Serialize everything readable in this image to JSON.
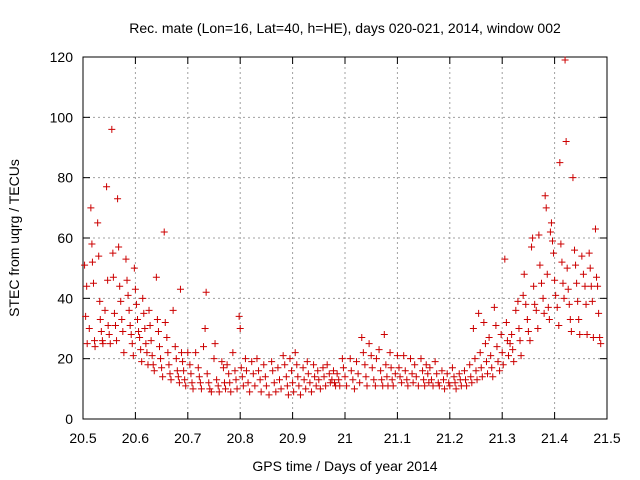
{
  "chart_data": {
    "type": "scatter",
    "title": "Rec. mate (Lon=16, Lat=40, h=HE), days 020-021, 2014, window 002",
    "xlabel": "GPS time / Days of year 2014",
    "ylabel": "STEC from uqrg / TECUs",
    "xlim": [
      20.5,
      21.5
    ],
    "ylim": [
      0,
      120
    ],
    "x_ticks": [
      20.5,
      20.6,
      20.7,
      20.8,
      20.9,
      21,
      21.1,
      21.2,
      21.3,
      21.4,
      21.5
    ],
    "x_tick_labels": [
      "20.5",
      "20.6",
      "20.7",
      "20.8",
      "20.9",
      "21",
      "21.1",
      "21.2",
      "21.3",
      "21.4",
      "21.5"
    ],
    "y_ticks": [
      0,
      20,
      40,
      60,
      80,
      100,
      120
    ],
    "y_tick_labels": [
      "0",
      "20",
      "40",
      "60",
      "80",
      "100",
      "120"
    ],
    "grid": true,
    "legend": "none",
    "marker": "+",
    "color": "#cc0000",
    "points": [
      [
        20.503,
        51
      ],
      [
        20.505,
        34
      ],
      [
        20.507,
        44
      ],
      [
        20.508,
        25
      ],
      [
        20.512,
        30
      ],
      [
        20.515,
        70
      ],
      [
        20.517,
        58
      ],
      [
        20.518,
        52
      ],
      [
        20.52,
        45
      ],
      [
        20.522,
        26
      ],
      [
        20.523,
        24
      ],
      [
        20.528,
        65
      ],
      [
        20.53,
        54
      ],
      [
        20.532,
        39
      ],
      [
        20.533,
        33
      ],
      [
        20.535,
        29
      ],
      [
        20.537,
        26
      ],
      [
        20.538,
        25
      ],
      [
        20.542,
        36
      ],
      [
        20.545,
        77
      ],
      [
        20.547,
        46
      ],
      [
        20.548,
        31
      ],
      [
        20.55,
        28
      ],
      [
        20.552,
        25
      ],
      [
        20.555,
        96
      ],
      [
        20.557,
        55
      ],
      [
        20.558,
        47
      ],
      [
        20.56,
        35
      ],
      [
        20.562,
        31
      ],
      [
        20.564,
        26
      ],
      [
        20.566,
        73
      ],
      [
        20.568,
        57
      ],
      [
        20.57,
        44
      ],
      [
        20.572,
        39
      ],
      [
        20.574,
        33
      ],
      [
        20.576,
        29
      ],
      [
        20.578,
        22
      ],
      [
        20.582,
        53
      ],
      [
        20.584,
        46
      ],
      [
        20.586,
        41
      ],
      [
        20.588,
        36
      ],
      [
        20.59,
        31
      ],
      [
        20.592,
        28
      ],
      [
        20.594,
        25
      ],
      [
        20.596,
        21
      ],
      [
        20.598,
        50
      ],
      [
        20.6,
        43
      ],
      [
        20.602,
        38
      ],
      [
        20.604,
        33
      ],
      [
        20.606,
        29
      ],
      [
        20.608,
        27
      ],
      [
        20.61,
        23
      ],
      [
        20.612,
        19
      ],
      [
        20.614,
        40
      ],
      [
        20.616,
        35
      ],
      [
        20.618,
        30
      ],
      [
        20.62,
        25
      ],
      [
        20.622,
        22
      ],
      [
        20.624,
        18
      ],
      [
        20.626,
        36
      ],
      [
        20.628,
        31
      ],
      [
        20.63,
        26
      ],
      [
        20.632,
        21
      ],
      [
        20.634,
        18
      ],
      [
        20.636,
        16
      ],
      [
        20.64,
        47
      ],
      [
        20.642,
        33
      ],
      [
        20.644,
        29
      ],
      [
        20.646,
        24
      ],
      [
        20.648,
        20
      ],
      [
        20.65,
        17
      ],
      [
        20.652,
        14
      ],
      [
        20.655,
        62
      ],
      [
        20.657,
        32
      ],
      [
        20.66,
        27
      ],
      [
        20.662,
        22
      ],
      [
        20.664,
        18
      ],
      [
        20.666,
        15
      ],
      [
        20.668,
        13
      ],
      [
        20.672,
        36
      ],
      [
        20.676,
        24
      ],
      [
        20.678,
        20
      ],
      [
        20.68,
        16
      ],
      [
        20.682,
        14
      ],
      [
        20.684,
        12
      ],
      [
        20.686,
        43
      ],
      [
        20.688,
        22
      ],
      [
        20.69,
        19
      ],
      [
        20.692,
        16
      ],
      [
        20.694,
        13
      ],
      [
        20.696,
        11
      ],
      [
        20.7,
        22
      ],
      [
        20.704,
        18
      ],
      [
        20.706,
        15
      ],
      [
        20.708,
        12
      ],
      [
        20.71,
        10
      ],
      [
        20.715,
        22
      ],
      [
        20.72,
        17
      ],
      [
        20.722,
        14
      ],
      [
        20.724,
        12
      ],
      [
        20.726,
        10
      ],
      [
        20.73,
        24
      ],
      [
        20.733,
        30
      ],
      [
        20.735,
        42
      ],
      [
        20.737,
        15
      ],
      [
        20.74,
        12
      ],
      [
        20.742,
        10
      ],
      [
        20.745,
        9
      ],
      [
        20.75,
        20
      ],
      [
        20.752,
        25
      ],
      [
        20.755,
        13
      ],
      [
        20.758,
        11
      ],
      [
        20.76,
        9
      ],
      [
        20.765,
        19
      ],
      [
        20.768,
        17
      ],
      [
        20.77,
        12
      ],
      [
        20.772,
        10
      ],
      [
        20.775,
        18
      ],
      [
        20.778,
        15
      ],
      [
        20.78,
        12
      ],
      [
        20.782,
        9
      ],
      [
        20.786,
        22
      ],
      [
        20.79,
        16
      ],
      [
        20.792,
        13
      ],
      [
        20.794,
        10
      ],
      [
        20.798,
        34
      ],
      [
        20.8,
        30
      ],
      [
        20.802,
        17
      ],
      [
        20.804,
        14
      ],
      [
        20.806,
        11
      ],
      [
        20.81,
        20
      ],
      [
        20.812,
        16
      ],
      [
        20.815,
        12
      ],
      [
        20.818,
        9
      ],
      [
        20.822,
        19
      ],
      [
        20.825,
        15
      ],
      [
        20.828,
        11
      ],
      [
        20.832,
        20
      ],
      [
        20.835,
        16
      ],
      [
        20.838,
        13
      ],
      [
        20.84,
        9
      ],
      [
        20.845,
        18
      ],
      [
        20.848,
        14
      ],
      [
        20.85,
        11
      ],
      [
        20.855,
        8
      ],
      [
        20.86,
        19
      ],
      [
        20.862,
        16
      ],
      [
        20.865,
        12
      ],
      [
        20.868,
        9
      ],
      [
        20.872,
        17
      ],
      [
        20.875,
        13
      ],
      [
        20.878,
        10
      ],
      [
        20.882,
        21
      ],
      [
        20.885,
        18
      ],
      [
        20.888,
        14
      ],
      [
        20.89,
        11
      ],
      [
        20.892,
        8
      ],
      [
        20.895,
        20
      ],
      [
        20.898,
        16
      ],
      [
        20.9,
        12
      ],
      [
        20.902,
        9
      ],
      [
        20.905,
        22
      ],
      [
        20.908,
        18
      ],
      [
        20.91,
        14
      ],
      [
        20.912,
        11
      ],
      [
        20.915,
        8
      ],
      [
        20.92,
        17
      ],
      [
        20.922,
        13
      ],
      [
        20.925,
        10
      ],
      [
        20.928,
        19
      ],
      [
        20.93,
        15
      ],
      [
        20.933,
        12
      ],
      [
        20.936,
        9
      ],
      [
        20.94,
        18
      ],
      [
        20.942,
        14
      ],
      [
        20.945,
        11
      ],
      [
        20.948,
        16
      ],
      [
        20.95,
        13
      ],
      [
        20.953,
        10
      ],
      [
        20.958,
        17
      ],
      [
        20.96,
        14
      ],
      [
        20.963,
        11
      ],
      [
        20.966,
        18
      ],
      [
        20.97,
        15
      ],
      [
        20.972,
        12
      ],
      [
        20.975,
        13
      ],
      [
        20.978,
        16
      ],
      [
        20.98,
        12
      ],
      [
        20.982,
        11
      ],
      [
        20.985,
        15
      ],
      [
        20.988,
        13
      ],
      [
        20.99,
        11
      ],
      [
        20.995,
        20
      ],
      [
        20.997,
        17
      ],
      [
        21.0,
        14
      ],
      [
        21.003,
        11
      ],
      [
        21.01,
        20
      ],
      [
        21.012,
        16
      ],
      [
        21.015,
        13
      ],
      [
        21.018,
        10
      ],
      [
        21.022,
        19
      ],
      [
        21.025,
        15
      ],
      [
        21.028,
        12
      ],
      [
        21.032,
        27
      ],
      [
        21.035,
        22
      ],
      [
        21.038,
        18
      ],
      [
        21.04,
        14
      ],
      [
        21.042,
        11
      ],
      [
        21.046,
        25
      ],
      [
        21.05,
        21
      ],
      [
        21.052,
        17
      ],
      [
        21.055,
        13
      ],
      [
        21.058,
        11
      ],
      [
        21.06,
        20
      ],
      [
        21.065,
        23
      ],
      [
        21.068,
        16
      ],
      [
        21.07,
        13
      ],
      [
        21.072,
        11
      ],
      [
        21.075,
        28
      ],
      [
        21.078,
        18
      ],
      [
        21.08,
        14
      ],
      [
        21.082,
        11
      ],
      [
        21.086,
        22
      ],
      [
        21.088,
        17
      ],
      [
        21.09,
        13
      ],
      [
        21.092,
        11
      ],
      [
        21.096,
        15
      ],
      [
        21.1,
        21
      ],
      [
        21.103,
        17
      ],
      [
        21.105,
        14
      ],
      [
        21.108,
        12
      ],
      [
        21.112,
        21
      ],
      [
        21.115,
        16
      ],
      [
        21.118,
        13
      ],
      [
        21.12,
        11
      ],
      [
        21.125,
        20
      ],
      [
        21.128,
        15
      ],
      [
        21.13,
        12
      ],
      [
        21.133,
        18
      ],
      [
        21.136,
        14
      ],
      [
        21.14,
        11
      ],
      [
        21.145,
        20
      ],
      [
        21.148,
        16
      ],
      [
        21.15,
        13
      ],
      [
        21.152,
        11
      ],
      [
        21.155,
        18
      ],
      [
        21.158,
        15
      ],
      [
        21.16,
        12
      ],
      [
        21.162,
        17
      ],
      [
        21.165,
        13
      ],
      [
        21.168,
        11
      ],
      [
        21.172,
        19
      ],
      [
        21.175,
        15
      ],
      [
        21.178,
        12
      ],
      [
        21.18,
        11
      ],
      [
        21.185,
        16
      ],
      [
        21.188,
        13
      ],
      [
        21.19,
        10
      ],
      [
        21.195,
        15
      ],
      [
        21.198,
        12
      ],
      [
        21.2,
        11
      ],
      [
        21.205,
        17
      ],
      [
        21.208,
        14
      ],
      [
        21.21,
        12
      ],
      [
        21.212,
        10
      ],
      [
        21.218,
        15
      ],
      [
        21.22,
        13
      ],
      [
        21.222,
        11
      ],
      [
        21.228,
        16
      ],
      [
        21.23,
        13
      ],
      [
        21.232,
        11
      ],
      [
        21.238,
        18
      ],
      [
        21.24,
        14
      ],
      [
        21.242,
        12
      ],
      [
        21.245,
        30
      ],
      [
        21.248,
        20
      ],
      [
        21.25,
        16
      ],
      [
        21.252,
        13
      ],
      [
        21.255,
        35
      ],
      [
        21.258,
        22
      ],
      [
        21.26,
        17
      ],
      [
        21.262,
        14
      ],
      [
        21.265,
        32
      ],
      [
        21.268,
        25
      ],
      [
        21.27,
        19
      ],
      [
        21.272,
        15
      ],
      [
        21.275,
        27
      ],
      [
        21.278,
        21
      ],
      [
        21.28,
        17
      ],
      [
        21.282,
        14
      ],
      [
        21.285,
        37
      ],
      [
        21.288,
        31
      ],
      [
        21.29,
        24
      ],
      [
        21.292,
        19
      ],
      [
        21.295,
        16
      ],
      [
        21.298,
        28
      ],
      [
        21.3,
        22
      ],
      [
        21.302,
        18
      ],
      [
        21.305,
        53
      ],
      [
        21.308,
        32
      ],
      [
        21.31,
        26
      ],
      [
        21.312,
        21
      ],
      [
        21.315,
        25
      ],
      [
        21.318,
        28
      ],
      [
        21.32,
        23
      ],
      [
        21.322,
        19
      ],
      [
        21.326,
        36
      ],
      [
        21.33,
        39
      ],
      [
        21.332,
        30
      ],
      [
        21.334,
        26
      ],
      [
        21.336,
        21
      ],
      [
        21.34,
        41
      ],
      [
        21.342,
        48
      ],
      [
        21.345,
        38
      ],
      [
        21.348,
        33
      ],
      [
        21.35,
        29
      ],
      [
        21.353,
        26
      ],
      [
        21.356,
        57
      ],
      [
        21.358,
        60
      ],
      [
        21.36,
        44
      ],
      [
        21.362,
        38
      ],
      [
        21.365,
        36
      ],
      [
        21.368,
        30
      ],
      [
        21.37,
        61
      ],
      [
        21.372,
        51
      ],
      [
        21.375,
        45
      ],
      [
        21.378,
        40
      ],
      [
        21.38,
        35
      ],
      [
        21.382,
        74
      ],
      [
        21.384,
        70
      ],
      [
        21.386,
        48
      ],
      [
        21.388,
        37
      ],
      [
        21.39,
        33
      ],
      [
        21.392,
        62
      ],
      [
        21.394,
        65
      ],
      [
        21.396,
        59
      ],
      [
        21.398,
        55
      ],
      [
        21.4,
        46
      ],
      [
        21.402,
        41
      ],
      [
        21.405,
        37
      ],
      [
        21.408,
        31
      ],
      [
        21.41,
        85
      ],
      [
        21.412,
        58
      ],
      [
        21.414,
        52
      ],
      [
        21.416,
        45
      ],
      [
        21.418,
        40
      ],
      [
        21.42,
        119
      ],
      [
        21.422,
        92
      ],
      [
        21.424,
        50
      ],
      [
        21.426,
        43
      ],
      [
        21.428,
        38
      ],
      [
        21.43,
        33
      ],
      [
        21.432,
        29
      ],
      [
        21.435,
        80
      ],
      [
        21.438,
        56
      ],
      [
        21.44,
        51
      ],
      [
        21.442,
        45
      ],
      [
        21.444,
        39
      ],
      [
        21.446,
        33
      ],
      [
        21.448,
        28
      ],
      [
        21.452,
        54
      ],
      [
        21.455,
        48
      ],
      [
        21.458,
        44
      ],
      [
        21.46,
        38
      ],
      [
        21.462,
        28
      ],
      [
        21.466,
        55
      ],
      [
        21.468,
        50
      ],
      [
        21.47,
        44
      ],
      [
        21.472,
        39
      ],
      [
        21.474,
        27
      ],
      [
        21.478,
        63
      ],
      [
        21.48,
        47
      ],
      [
        21.482,
        44
      ],
      [
        21.484,
        35
      ],
      [
        21.486,
        27
      ],
      [
        21.488,
        25
      ]
    ]
  }
}
